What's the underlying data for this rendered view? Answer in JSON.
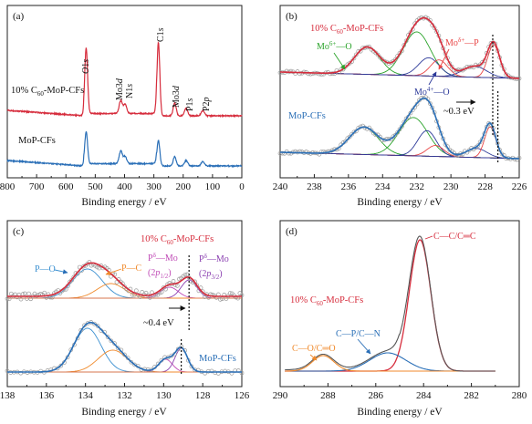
{
  "chart_data": [
    {
      "panel_label": "(a)",
      "type": "line",
      "title": "",
      "xlabel": "Binding energy / eV",
      "ylabel": "",
      "x_reversed": true,
      "xlim": [
        800,
        0
      ],
      "x_ticks": [
        "800",
        "700",
        "600",
        "500",
        "400",
        "300",
        "200",
        "100",
        "0"
      ],
      "grid": false,
      "series": [
        {
          "name": "10% C60-MoP-CFs",
          "color": "#d62c3c",
          "peaks": [
            {
              "x": 531,
              "label": "O1s"
            },
            {
              "x": 413,
              "label": "Mo3d"
            },
            {
              "x": 398,
              "label": "N1s"
            },
            {
              "x": 284.6,
              "label": "C1s"
            },
            {
              "x": 229,
              "label": "Mo3d"
            },
            {
              "x": 190,
              "label": "P1s"
            },
            {
              "x": 133,
              "label": "P2p"
            }
          ]
        },
        {
          "name": "MoP-CFs",
          "color": "#2a6fb7",
          "peaks": [
            {
              "x": 531,
              "label": "O1s"
            },
            {
              "x": 413,
              "label": "Mo3d"
            },
            {
              "x": 398,
              "label": "N1s"
            },
            {
              "x": 284.6,
              "label": "C1s"
            },
            {
              "x": 229,
              "label": "Mo3d"
            },
            {
              "x": 190,
              "label": "P1s"
            },
            {
              "x": 133,
              "label": "P2p"
            }
          ]
        }
      ]
    },
    {
      "panel_label": "(b)",
      "type": "line",
      "title": "",
      "xlabel": "Binding energy / eV",
      "x_reversed": true,
      "xlim": [
        240,
        226
      ],
      "x_ticks": [
        "240",
        "238",
        "236",
        "234",
        "232",
        "230",
        "228",
        "226"
      ],
      "grid": false,
      "series": [
        {
          "name": "10% C60-MoP-CFs",
          "color": "#d62c3c"
        },
        {
          "name": "MoP-CFs",
          "color": "#2a6fb7"
        }
      ],
      "components": [
        {
          "name": "Mo6+—O",
          "color": "#2aa32a",
          "centers_eV": [
            235.2,
            232.1
          ]
        },
        {
          "name": "Mo4+—O",
          "color": "#2d3a99",
          "centers_eV": [
            231.3,
            228.6
          ]
        },
        {
          "name": "Moδ+—P",
          "color": "#e84545",
          "centers_eV": [
            230.7,
            227.5
          ]
        }
      ],
      "shift_label": "~0.3 eV",
      "shift_ref_eV": [
        227.55,
        227.25
      ]
    },
    {
      "panel_label": "(c)",
      "type": "line",
      "title": "",
      "xlabel": "Binding energy / eV",
      "x_reversed": true,
      "xlim": [
        138,
        126
      ],
      "x_ticks": [
        "138",
        "136",
        "134",
        "132",
        "130",
        "128",
        "126"
      ],
      "grid": false,
      "series": [
        {
          "name": "10% C60-MoP-CFs",
          "color": "#d62c3c"
        },
        {
          "name": "MoP-CFs",
          "color": "#2a6fb7"
        }
      ],
      "components": [
        {
          "name": "P—O",
          "color": "#3a8fd0",
          "center_eV": 133.9
        },
        {
          "name": "P—C",
          "color": "#f08a2c",
          "center_eV": 132.6
        },
        {
          "name": "Pδ—Mo (2p1/2)",
          "color": "#c04bb6",
          "center_eV": 129.9
        },
        {
          "name": "Pδ—Mo (2p3/2)",
          "color": "#8a3fb0",
          "center_eV": 129.2
        }
      ],
      "shift_label": "~0.4 eV",
      "shift_ref_eV": [
        129.1,
        128.7
      ]
    },
    {
      "panel_label": "(d)",
      "type": "line",
      "title": "",
      "xlabel": "Binding energy / eV",
      "x_reversed": true,
      "xlim": [
        290,
        280
      ],
      "x_ticks": [
        "290",
        "288",
        "286",
        "284",
        "282",
        "280"
      ],
      "grid": false,
      "series": [
        {
          "name": "10% C60-MoP-CFs",
          "color": "#d62c3c"
        }
      ],
      "components": [
        {
          "name": "C—C/C=C",
          "color": "#d62c3c",
          "center_eV": 284.2
        },
        {
          "name": "C—P/C—N",
          "color": "#2a6fb7",
          "center_eV": 285.5
        },
        {
          "name": "C—O/C=O",
          "color": "#f08a2c",
          "center_eV": 288.2
        }
      ]
    }
  ],
  "text": {
    "a": {
      "label": "(a)",
      "xlabel": "Binding energy / eV",
      "sample1": "10% C60-MoP-CFs",
      "sample2": "MoP-CFs",
      "o1s": "O1s",
      "mo3d_a": "Mo3d",
      "n1s": "N1s",
      "c1s": "C1s",
      "mo3d_b": "Mo3d",
      "p1s": "P1s",
      "p2p": "P2p"
    },
    "b": {
      "label": "(b)",
      "xlabel": "Binding energy / eV",
      "sample1": "10% C60-MoP-CFs",
      "sample2": "MoP-CFs",
      "mo6": "Mo6+—O",
      "mo4": "Mo4+—O",
      "mod": "Moδ+—P",
      "shift": "~0.3 eV"
    },
    "c": {
      "label": "(c)",
      "xlabel": "Binding energy / eV",
      "sample1": "10% C60-MoP-CFs",
      "sample2": "MoP-CFs",
      "po": "P—O",
      "pc": "P—C",
      "pmo1_top": "Pδ—Mo",
      "pmo1_bot": "(2p1/2)",
      "pmo2_top": "Pδ—Mo",
      "pmo2_bot": "(2p3/2)",
      "shift": "~0.4 eV"
    },
    "d": {
      "label": "(d)",
      "xlabel": "Binding energy / eV",
      "sample1": "10% C60-MoP-CFs",
      "ccc": "C—C/C=C",
      "cpn": "C—P/C—N",
      "coo": "C—O/C=O"
    }
  }
}
